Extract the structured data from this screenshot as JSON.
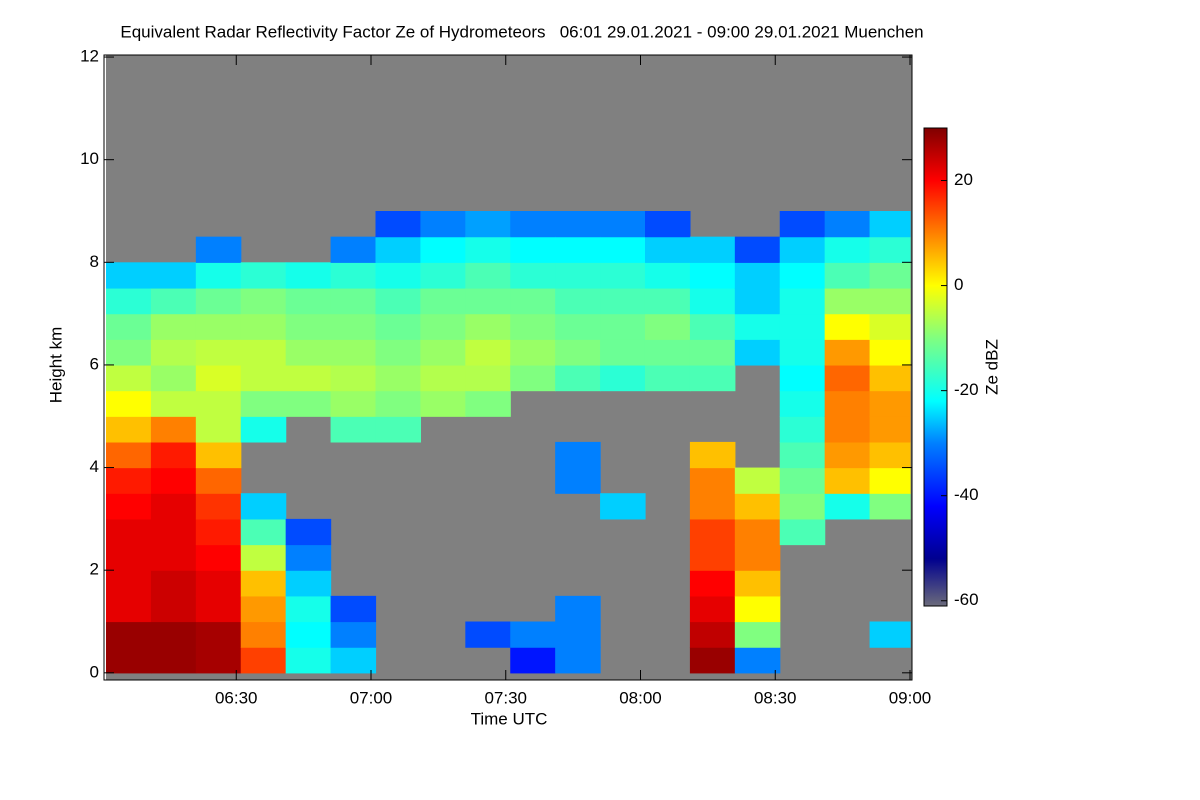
{
  "chart_data": {
    "type": "heatmap",
    "title": "Equivalent Radar Reflectivity Factor Ze of Hydrometeors   06:01 29.01.2021 - 09:00 29.01.2021 Muenchen",
    "x_label": "Time UTC",
    "y_label": "Height km",
    "colorbar_label": "Ze dBZ",
    "xlim": [
      "06:01",
      "09:00"
    ],
    "xticks": [
      "06:30",
      "07:00",
      "07:30",
      "08:00",
      "08:30",
      "09:00"
    ],
    "ylim": [
      -0.14,
      12.04
    ],
    "yticks": [
      0,
      2,
      4,
      6,
      8,
      10,
      12
    ],
    "clim": [
      -61,
      30
    ],
    "cticks": [
      -60,
      -40,
      -20,
      0,
      20
    ],
    "missing_color": "#808080",
    "colorscale": [
      [
        -61,
        "#6b6b7b"
      ],
      [
        -52,
        "#00008f"
      ],
      [
        -42,
        "#0000ff"
      ],
      [
        -30,
        "#0080ff"
      ],
      [
        -22,
        "#00ffff"
      ],
      [
        -10,
        "#80ff80"
      ],
      [
        0,
        "#ffff00"
      ],
      [
        10,
        "#ff8000"
      ],
      [
        20,
        "#ff0000"
      ],
      [
        30,
        "#800000"
      ]
    ],
    "x": [
      "06:01",
      "06:11",
      "06:21",
      "06:31",
      "06:41",
      "06:51",
      "07:01",
      "07:11",
      "07:21",
      "07:31",
      "07:41",
      "07:51",
      "08:01",
      "08:11",
      "08:21",
      "08:31",
      "08:41",
      "08:51"
    ],
    "y": [
      0,
      0.5,
      1,
      1.5,
      2,
      2.5,
      3,
      3.5,
      4,
      4.5,
      5,
      5.5,
      6,
      6.5,
      7,
      7.5,
      8,
      8.5
    ],
    "z": [
      [
        28,
        28,
        22,
        22,
        22,
        22,
        20,
        18,
        12,
        5,
        0,
        -5,
        -10,
        -12,
        -18,
        -25,
        null,
        null
      ],
      [
        28,
        28,
        24,
        24,
        22,
        22,
        22,
        20,
        18,
        10,
        -5,
        -8,
        -6,
        -8,
        -15,
        -25,
        null,
        null
      ],
      [
        27,
        27,
        22,
        22,
        20,
        18,
        16,
        12,
        5,
        -5,
        -5,
        -3,
        -5,
        -8,
        -12,
        -20,
        -30,
        null
      ],
      [
        15,
        10,
        8,
        5,
        -5,
        -15,
        -25,
        null,
        null,
        -20,
        -10,
        -5,
        -5,
        -8,
        -10,
        -18,
        null,
        null
      ],
      [
        -20,
        -22,
        -20,
        -25,
        -30,
        -35,
        null,
        null,
        null,
        null,
        -10,
        -5,
        -8,
        -10,
        -12,
        -20,
        null,
        null
      ],
      [
        -25,
        -30,
        -35,
        null,
        null,
        null,
        null,
        null,
        null,
        -15,
        -8,
        -6,
        -8,
        -10,
        -12,
        -18,
        -30,
        null
      ],
      [
        null,
        null,
        null,
        null,
        null,
        null,
        null,
        null,
        null,
        -15,
        -10,
        -8,
        -10,
        -12,
        -15,
        -20,
        -25,
        -35
      ],
      [
        null,
        null,
        null,
        null,
        null,
        null,
        null,
        null,
        null,
        null,
        -8,
        -6,
        -8,
        -10,
        -12,
        -18,
        -22,
        -30
      ],
      [
        null,
        -35,
        null,
        null,
        null,
        null,
        null,
        null,
        null,
        null,
        -10,
        -6,
        -5,
        -8,
        -12,
        -15,
        -20,
        -28
      ],
      [
        -40,
        -30,
        null,
        null,
        null,
        null,
        null,
        null,
        null,
        null,
        null,
        -10,
        -8,
        -10,
        -12,
        -18,
        -22,
        -30
      ],
      [
        -30,
        -30,
        -30,
        null,
        null,
        null,
        null,
        -30,
        -30,
        null,
        null,
        -15,
        -10,
        -12,
        -15,
        -18,
        -22,
        -30
      ],
      [
        null,
        null,
        null,
        null,
        null,
        null,
        -25,
        null,
        null,
        null,
        null,
        -18,
        -12,
        -12,
        -15,
        -18,
        -22,
        -30
      ],
      [
        null,
        null,
        null,
        null,
        null,
        null,
        null,
        null,
        null,
        null,
        null,
        -15,
        -12,
        -10,
        -15,
        -20,
        -25,
        -35
      ],
      [
        28,
        25,
        22,
        20,
        15,
        15,
        10,
        10,
        5,
        null,
        null,
        -15,
        -12,
        -15,
        -20,
        -22,
        -25,
        null
      ],
      [
        -30,
        -10,
        0,
        5,
        10,
        10,
        5,
        -5,
        null,
        null,
        null,
        null,
        -25,
        -20,
        -25,
        -25,
        -35,
        null
      ],
      [
        null,
        null,
        null,
        null,
        null,
        -15,
        -10,
        -12,
        -15,
        -18,
        -20,
        -22,
        -20,
        -20,
        -20,
        -22,
        -25,
        -35
      ],
      [
        null,
        null,
        null,
        null,
        null,
        null,
        -20,
        5,
        8,
        10,
        10,
        12,
        8,
        0,
        -8,
        -15,
        -20,
        -30
      ],
      [
        null,
        -25,
        null,
        null,
        null,
        null,
        -10,
        0,
        5,
        8,
        8,
        5,
        0,
        -3,
        -8,
        -12,
        -18,
        -25
      ]
    ]
  }
}
